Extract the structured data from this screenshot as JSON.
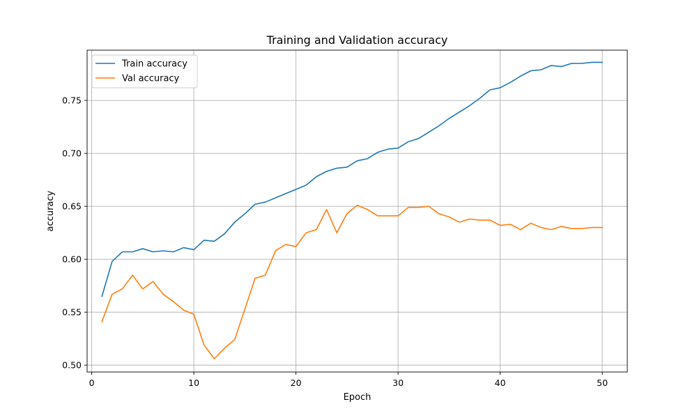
{
  "chart_data": {
    "type": "line",
    "title": "Training and Validation accuracy",
    "xlabel": "Epoch",
    "ylabel": "accuracy",
    "xlim": [
      -0.45,
      52.45
    ],
    "ylim": [
      0.4935,
      0.7975
    ],
    "x_ticks": [
      0,
      10,
      20,
      30,
      40,
      50
    ],
    "x_tick_labels": [
      "0",
      "10",
      "20",
      "30",
      "40",
      "50"
    ],
    "y_ticks": [
      0.5,
      0.55,
      0.6,
      0.65,
      0.7,
      0.75
    ],
    "y_tick_labels": [
      "0.50",
      "0.55",
      "0.60",
      "0.65",
      "0.70",
      "0.75"
    ],
    "grid": true,
    "legend_position": "upper-left",
    "x": [
      1,
      2,
      3,
      4,
      5,
      6,
      7,
      8,
      9,
      10,
      11,
      12,
      13,
      14,
      15,
      16,
      17,
      18,
      19,
      20,
      21,
      22,
      23,
      24,
      25,
      26,
      27,
      28,
      29,
      30,
      31,
      32,
      33,
      34,
      35,
      36,
      37,
      38,
      39,
      40,
      41,
      42,
      43,
      44,
      45,
      46,
      47,
      48,
      49,
      50
    ],
    "series": [
      {
        "name": "Train accuracy",
        "color": "#1f77b4",
        "values": [
          0.565,
          0.598,
          0.607,
          0.607,
          0.61,
          0.607,
          0.608,
          0.607,
          0.611,
          0.609,
          0.618,
          0.617,
          0.624,
          0.635,
          0.643,
          0.652,
          0.654,
          0.658,
          0.662,
          0.666,
          0.67,
          0.678,
          0.683,
          0.686,
          0.687,
          0.693,
          0.695,
          0.701,
          0.704,
          0.705,
          0.711,
          0.714,
          0.72,
          0.726,
          0.733,
          0.739,
          0.745,
          0.752,
          0.76,
          0.762,
          0.767,
          0.773,
          0.778,
          0.779,
          0.783,
          0.782,
          0.785,
          0.785,
          0.786,
          0.786
        ]
      },
      {
        "name": "Val accuracy",
        "color": "#ff7f0e",
        "values": [
          0.541,
          0.567,
          0.572,
          0.585,
          0.572,
          0.579,
          0.567,
          0.56,
          0.552,
          0.548,
          0.519,
          0.506,
          0.516,
          0.524,
          0.553,
          0.582,
          0.585,
          0.608,
          0.614,
          0.612,
          0.625,
          0.628,
          0.647,
          0.625,
          0.643,
          0.651,
          0.647,
          0.641,
          0.641,
          0.641,
          0.649,
          0.649,
          0.65,
          0.643,
          0.64,
          0.635,
          0.638,
          0.637,
          0.637,
          0.632,
          0.633,
          0.628,
          0.634,
          0.63,
          0.628,
          0.631,
          0.629,
          0.629,
          0.63,
          0.63
        ]
      }
    ]
  }
}
